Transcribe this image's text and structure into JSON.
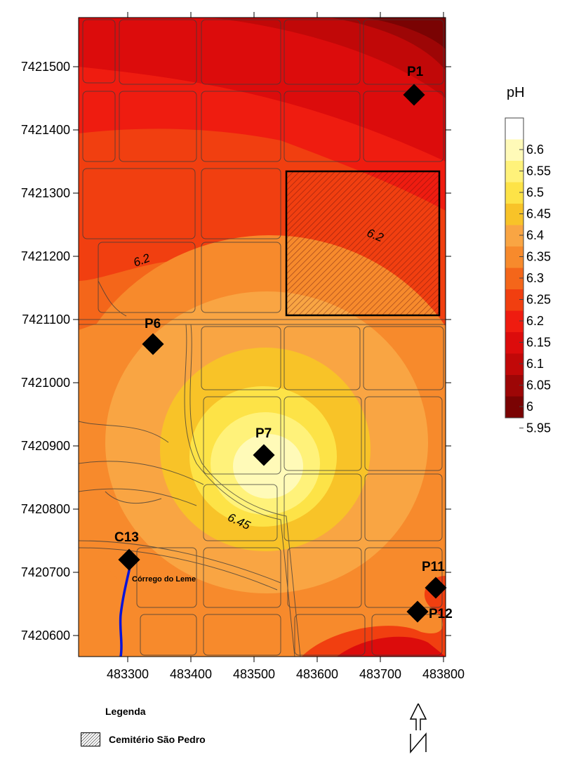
{
  "colorbar": {
    "title": "pH",
    "levels": [
      "6.6",
      "6.55",
      "6.5",
      "6.45",
      "6.4",
      "6.35",
      "6.3",
      "6.25",
      "6.2",
      "6.15",
      "6.1",
      "6.05",
      "6",
      "5.95"
    ],
    "colors": [
      "#ffffff",
      "#fffab8",
      "#fff27a",
      "#fde347",
      "#f8c328",
      "#f9a543",
      "#f78a2c",
      "#f4661a",
      "#f13f10",
      "#ef1c10",
      "#dc0c0c",
      "#c10808",
      "#9d0606",
      "#7a0303"
    ]
  },
  "axes": {
    "x_ticks": [
      "483300",
      "483400",
      "483500",
      "483600",
      "483700",
      "483800"
    ],
    "y_ticks": [
      "7421500",
      "7421400",
      "7421300",
      "7421200",
      "7421100",
      "7421000",
      "7420900",
      "7420800",
      "7420700",
      "7420600"
    ]
  },
  "contour_labels": {
    "left_62": "6.2",
    "cemetery_62": "6.2",
    "center_645": "6.45"
  },
  "points": [
    {
      "id": "P1",
      "label": "P1"
    },
    {
      "id": "P6",
      "label": "P6"
    },
    {
      "id": "P7",
      "label": "P7"
    },
    {
      "id": "C13",
      "label": "C13"
    },
    {
      "id": "P11",
      "label": "P11"
    },
    {
      "id": "P12",
      "label": "P12"
    }
  ],
  "stream_label": "Córrego do Leme",
  "legend": {
    "title": "Legenda",
    "item": "Cemitério São Pedro"
  },
  "north_icon": "north-arrow-icon"
}
